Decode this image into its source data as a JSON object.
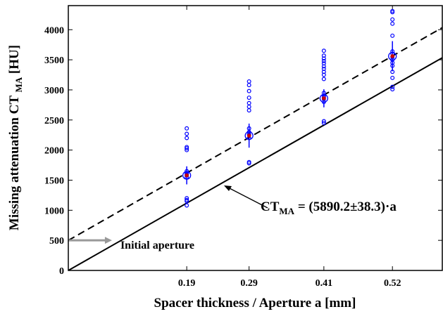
{
  "chart_data": {
    "type": "scatter",
    "x_label": "Spacer thickness / Aperture a [mm]",
    "y_label": {
      "main": "Missing attenuation CT ",
      "sub": "MA",
      "tail": " [HU]"
    },
    "xlim": [
      0,
      0.6
    ],
    "ylim": [
      0,
      4400
    ],
    "xticks": [
      0.19,
      0.29,
      0.41,
      0.52
    ],
    "yticks": [
      0,
      500,
      1000,
      1500,
      2000,
      2500,
      3000,
      3500,
      4000
    ],
    "sample_color": "#0000ff",
    "samples": [
      {
        "x": 0.19,
        "values": [
          2360,
          2270,
          2200,
          2050,
          2030,
          2000,
          1650,
          1620,
          1600,
          1580,
          1550,
          1200,
          1170,
          1150,
          1080
        ]
      },
      {
        "x": 0.29,
        "values": [
          3140,
          3080,
          2980,
          2870,
          2780,
          2720,
          2660,
          2360,
          2300,
          2260,
          2200,
          1800,
          1780
        ]
      },
      {
        "x": 0.41,
        "values": [
          3650,
          3570,
          3520,
          3480,
          3440,
          3390,
          3350,
          3300,
          3250,
          3180,
          2950,
          2900,
          2880,
          2850,
          2800,
          2480,
          2450
        ]
      },
      {
        "x": 0.52,
        "values": [
          4310,
          4290,
          4170,
          4100,
          3900,
          3640,
          3600,
          3550,
          3500,
          3450,
          3400,
          3300,
          3200,
          3050,
          3010
        ]
      }
    ],
    "means": {
      "x": [
        0.19,
        0.29,
        0.41,
        0.52
      ],
      "values": [
        1580,
        2240,
        2860,
        3560
      ],
      "errors": [
        150,
        200,
        150,
        250
      ],
      "color": "#0000ff",
      "dot_color": "#cc0000"
    },
    "lines": [
      {
        "x": [
          0,
          0.6
        ],
        "values": [
          500,
          4034
        ],
        "dashed": true,
        "color": "#000000"
      },
      {
        "x": [
          0,
          0.6
        ],
        "values": [
          0,
          3534
        ],
        "dashed": false,
        "color": "#000000"
      }
    ],
    "fit_label": {
      "main": "CT",
      "sub": "MA",
      "tail": " = (5890.2±38.3)·a"
    },
    "aperture": {
      "label": "Initial aperture",
      "value": 500,
      "arrow_end": 0.07,
      "color": "#999999"
    }
  }
}
